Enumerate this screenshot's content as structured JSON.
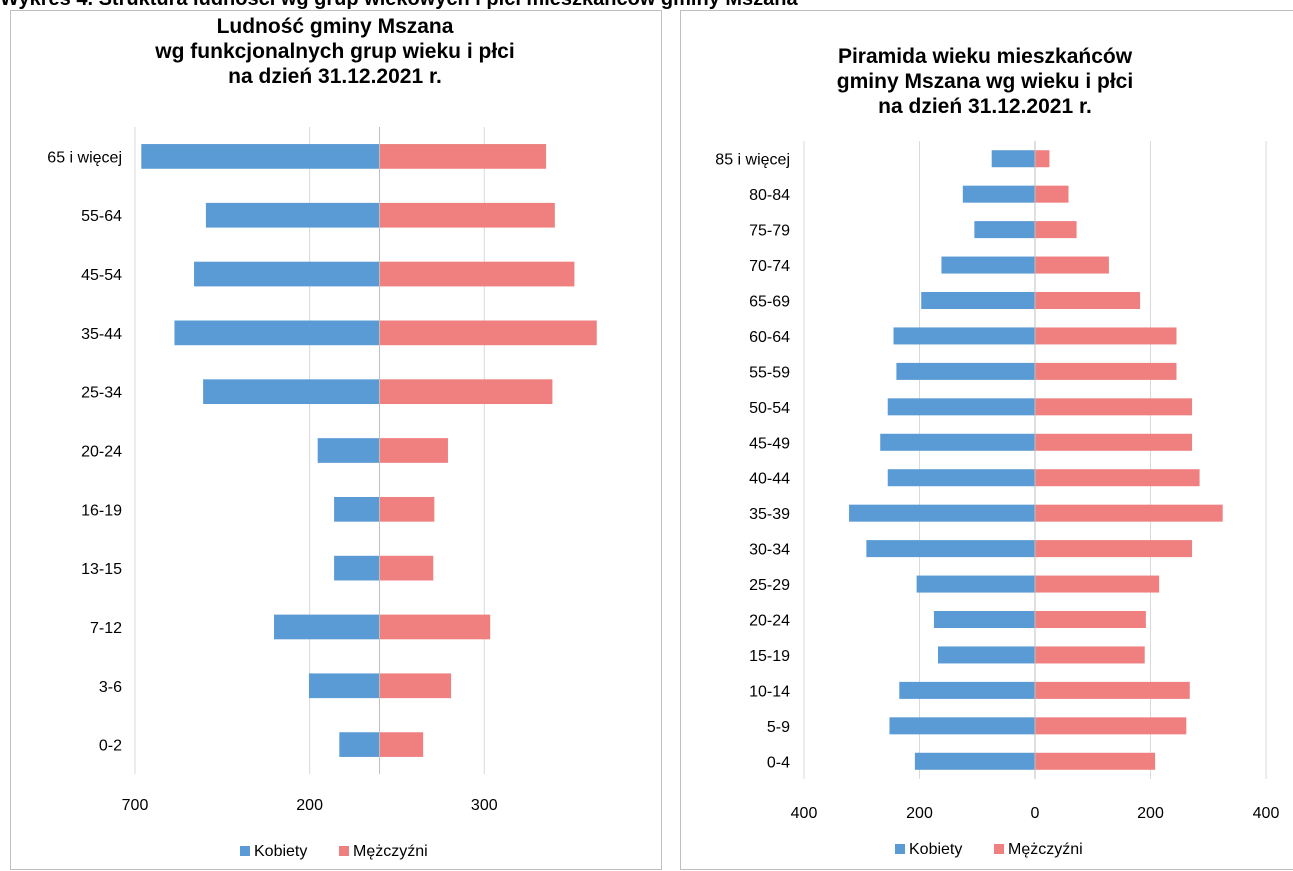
{
  "caption": "Wykres 4. Struktura ludności wg grup wiekowych i płci mieszkańców gminy Mszana",
  "colors": {
    "female": "#5B9BD5",
    "male": "#F08080",
    "grid": "#d9d9d9",
    "axis": "#bfbfbf"
  },
  "chart_data": [
    {
      "type": "bar",
      "orientation": "horizontal",
      "title": [
        "Ludność gminy Mszana",
        "wg funkcjonalnych grup wieku i płci",
        "na dzień 31.12.2021 r."
      ],
      "categories": [
        "65 i więcej",
        "55-64",
        "45-54",
        "35-44",
        "25-34",
        "20-24",
        "16-19",
        "13-15",
        "7-12",
        "3-6",
        "0-2"
      ],
      "series": [
        {
          "name": "Kobiety",
          "values": [
            682,
            497,
            531,
            587,
            505,
            177,
            130,
            130,
            302,
            202,
            115
          ]
        },
        {
          "name": "Mężczyźni",
          "values": [
            477,
            502,
            558,
            622,
            495,
            196,
            157,
            154,
            317,
            205,
            125
          ]
        }
      ],
      "xlim": [
        -700,
        700
      ],
      "xticks": [
        -700,
        -200,
        300
      ],
      "xtick_labels": [
        "700",
        "200",
        "300"
      ],
      "grid": true,
      "legend": "bottom"
    },
    {
      "type": "bar",
      "orientation": "horizontal",
      "title": [
        "Piramida wieku mieszkańców",
        "gminy Mszana wg wieku i płci",
        "na dzień 31.12.2021 r."
      ],
      "categories": [
        "85 i więcej",
        "80-84",
        "75-79",
        "70-74",
        "65-69",
        "60-64",
        "55-59",
        "50-54",
        "45-49",
        "40-44",
        "35-39",
        "30-34",
        "25-29",
        "20-24",
        "15-19",
        "10-14",
        "5-9",
        "0-4"
      ],
      "series": [
        {
          "name": "Kobiety",
          "values": [
            75,
            125,
            105,
            162,
            197,
            245,
            240,
            255,
            268,
            255,
            322,
            292,
            205,
            175,
            168,
            235,
            252,
            208
          ]
        },
        {
          "name": "Mężczyźni",
          "values": [
            25,
            58,
            72,
            128,
            182,
            245,
            245,
            272,
            272,
            285,
            325,
            272,
            215,
            192,
            190,
            268,
            262,
            208
          ]
        }
      ],
      "xlim": [
        -400,
        400
      ],
      "xticks": [
        -400,
        -200,
        0,
        200,
        400
      ],
      "xtick_labels": [
        "400",
        "200",
        "0",
        "200",
        "400"
      ],
      "grid": true,
      "legend": "bottom"
    }
  ]
}
